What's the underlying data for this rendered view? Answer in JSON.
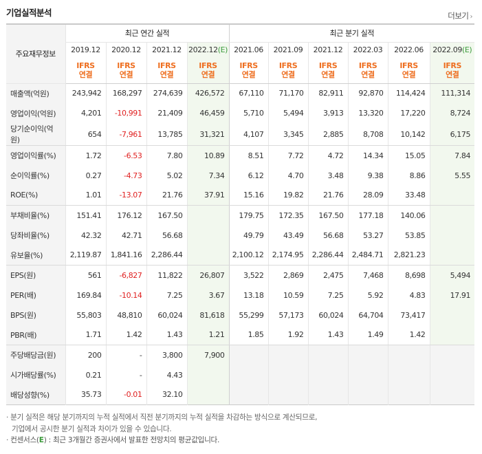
{
  "header": {
    "title": "기업실적분석",
    "more_label": "더보기"
  },
  "table": {
    "rowhead_label": "주요재무정보",
    "annual_group_label": "최근 연간 실적",
    "quarter_group_label": "최근 분기 실적",
    "annual_periods": [
      {
        "label": "2019.12",
        "est": ""
      },
      {
        "label": "2020.12",
        "est": ""
      },
      {
        "label": "2021.12",
        "est": ""
      },
      {
        "label": "2022.12",
        "est": "(E)"
      }
    ],
    "quarter_periods": [
      {
        "label": "2021.06",
        "est": ""
      },
      {
        "label": "2021.09",
        "est": ""
      },
      {
        "label": "2021.12",
        "est": ""
      },
      {
        "label": "2022.03",
        "est": ""
      },
      {
        "label": "2022.06",
        "est": ""
      },
      {
        "label": "2022.09",
        "est": "(E)"
      }
    ],
    "basis_line1": "IFRS",
    "basis_line2": "연결",
    "rows": [
      {
        "label": "매출액(억원)",
        "values": [
          "243,942",
          "168,297",
          "274,639",
          "426,572",
          "67,110",
          "71,170",
          "82,911",
          "92,870",
          "114,424",
          "111,314"
        ]
      },
      {
        "label": "영업이익(억원)",
        "values": [
          "4,201",
          "-10,991",
          "21,409",
          "46,459",
          "5,710",
          "5,494",
          "3,913",
          "13,320",
          "17,220",
          "8,724"
        ]
      },
      {
        "label": "당기순이익(억원)",
        "values": [
          "654",
          "-7,961",
          "13,785",
          "31,321",
          "4,107",
          "3,345",
          "2,885",
          "8,708",
          "10,142",
          "6,175"
        ]
      },
      {
        "label": "영업이익률(%)",
        "values": [
          "1.72",
          "-6.53",
          "7.80",
          "10.89",
          "8.51",
          "7.72",
          "4.72",
          "14.34",
          "15.05",
          "7.84"
        ]
      },
      {
        "label": "순이익률(%)",
        "values": [
          "0.27",
          "-4.73",
          "5.02",
          "7.34",
          "6.12",
          "4.70",
          "3.48",
          "9.38",
          "8.86",
          "5.55"
        ]
      },
      {
        "label": "ROE(%)",
        "values": [
          "1.01",
          "-13.07",
          "21.76",
          "37.91",
          "15.16",
          "19.82",
          "21.76",
          "28.09",
          "33.48",
          ""
        ]
      },
      {
        "label": "부채비율(%)",
        "values": [
          "151.41",
          "176.12",
          "167.50",
          "",
          "179.75",
          "172.35",
          "167.50",
          "177.18",
          "140.06",
          ""
        ]
      },
      {
        "label": "당좌비율(%)",
        "values": [
          "42.32",
          "42.71",
          "56.68",
          "",
          "49.79",
          "43.49",
          "56.68",
          "53.27",
          "53.85",
          ""
        ]
      },
      {
        "label": "유보율(%)",
        "values": [
          "2,119.87",
          "1,841.16",
          "2,286.44",
          "",
          "2,100.12",
          "2,174.95",
          "2,286.44",
          "2,484.71",
          "2,821.23",
          ""
        ]
      },
      {
        "label": "EPS(원)",
        "values": [
          "561",
          "-6,827",
          "11,822",
          "26,807",
          "3,522",
          "2,869",
          "2,475",
          "7,468",
          "8,698",
          "5,494"
        ]
      },
      {
        "label": "PER(배)",
        "values": [
          "169.84",
          "-10.14",
          "7.25",
          "3.67",
          "13.18",
          "10.59",
          "7.25",
          "5.92",
          "4.83",
          "17.91"
        ]
      },
      {
        "label": "BPS(원)",
        "values": [
          "55,803",
          "48,810",
          "60,024",
          "81,618",
          "55,299",
          "57,173",
          "60,024",
          "64,704",
          "73,417",
          ""
        ]
      },
      {
        "label": "PBR(배)",
        "values": [
          "1.71",
          "1.42",
          "1.43",
          "1.21",
          "1.85",
          "1.92",
          "1.43",
          "1.49",
          "1.42",
          ""
        ]
      },
      {
        "label": "주당배당금(원)",
        "values": [
          "200",
          "-",
          "3,800",
          "7,900",
          "",
          "",
          "",
          "",
          "",
          ""
        ]
      },
      {
        "label": "시가배당률(%)",
        "values": [
          "0.21",
          "-",
          "4.43",
          "",
          "",
          "",
          "",
          "",
          "",
          ""
        ]
      },
      {
        "label": "배당성향(%)",
        "values": [
          "35.73",
          "-0.01",
          "32.10",
          "",
          "",
          "",
          "",
          "",
          "",
          ""
        ]
      }
    ]
  },
  "notes": {
    "line1": "분기 실적은 해당 분기까지의 누적 실적에서 직전 분기까지의 누적 실적을 차감하는 방식으로 계산되므로,",
    "line2": "기업에서 공시한 분기 실적과 차이가 있을 수 있습니다.",
    "line3_prefix": "컨센서스(",
    "line3_e": "E",
    "line3_suffix": ") : 최근 3개월간 증권사에서 발표한 전망치의 평균값입니다."
  },
  "colors": {
    "basis_orange": "#ee6e1f",
    "estimate_green": "#3c9b3c",
    "negative_red": "#e02020",
    "estimate_shade": "#f2f8ee"
  }
}
